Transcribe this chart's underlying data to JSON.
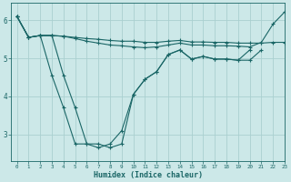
{
  "xlabel": "Humidex (Indice chaleur)",
  "xlim": [
    -0.5,
    23
  ],
  "ylim": [
    2.3,
    6.45
  ],
  "background_color": "#cce8e8",
  "grid_color": "#aad0d0",
  "line_color": "#1a6666",
  "line1_x": [
    0,
    1,
    2,
    3,
    4,
    5,
    6,
    7,
    8,
    9,
    10,
    11,
    12,
    13,
    14,
    15,
    16,
    17,
    18,
    19,
    20,
    21,
    22,
    23
  ],
  "line1_y": [
    6.1,
    5.55,
    5.6,
    5.6,
    5.58,
    5.55,
    5.52,
    5.5,
    5.47,
    5.45,
    5.45,
    5.42,
    5.42,
    5.45,
    5.47,
    5.43,
    5.43,
    5.42,
    5.42,
    5.4,
    5.4,
    5.4,
    5.42,
    5.42
  ],
  "line2_x": [
    0,
    1,
    2,
    3,
    4,
    5,
    6,
    7,
    8,
    9,
    10,
    11,
    12,
    13,
    14,
    15,
    16,
    17,
    18,
    19,
    20,
    21,
    22,
    23
  ],
  "line2_y": [
    6.1,
    5.55,
    5.6,
    5.6,
    5.58,
    5.52,
    5.45,
    5.4,
    5.35,
    5.33,
    5.3,
    5.28,
    5.3,
    5.35,
    5.4,
    5.35,
    5.35,
    5.33,
    5.33,
    5.32,
    5.3,
    5.42,
    5.9,
    6.22
  ],
  "line3_x": [
    0,
    1,
    2,
    3,
    4,
    5,
    6,
    7,
    8,
    9,
    10,
    11,
    12,
    13,
    14,
    15,
    16,
    17,
    18,
    19,
    20,
    21
  ],
  "line3_y": [
    6.1,
    5.55,
    5.6,
    4.55,
    3.7,
    2.75,
    2.75,
    2.65,
    2.75,
    3.1,
    4.05,
    4.45,
    4.65,
    5.1,
    5.22,
    4.98,
    5.05,
    4.98,
    4.98,
    4.95,
    4.95,
    5.22
  ],
  "line4_x": [
    0,
    1,
    2,
    3,
    4,
    5,
    6,
    7,
    8,
    9,
    10,
    11,
    12,
    13,
    14,
    15,
    16,
    17,
    18,
    19,
    20
  ],
  "line4_y": [
    6.1,
    5.55,
    5.6,
    5.6,
    4.55,
    3.7,
    2.75,
    2.75,
    2.65,
    2.75,
    4.05,
    4.45,
    4.65,
    5.1,
    5.22,
    4.98,
    5.05,
    4.98,
    4.98,
    4.95,
    5.22
  ],
  "yticks": [
    3,
    4,
    5,
    6
  ],
  "xticks": [
    0,
    1,
    2,
    3,
    4,
    5,
    6,
    7,
    8,
    9,
    10,
    11,
    12,
    13,
    14,
    15,
    16,
    17,
    18,
    19,
    20,
    21,
    22,
    23
  ]
}
